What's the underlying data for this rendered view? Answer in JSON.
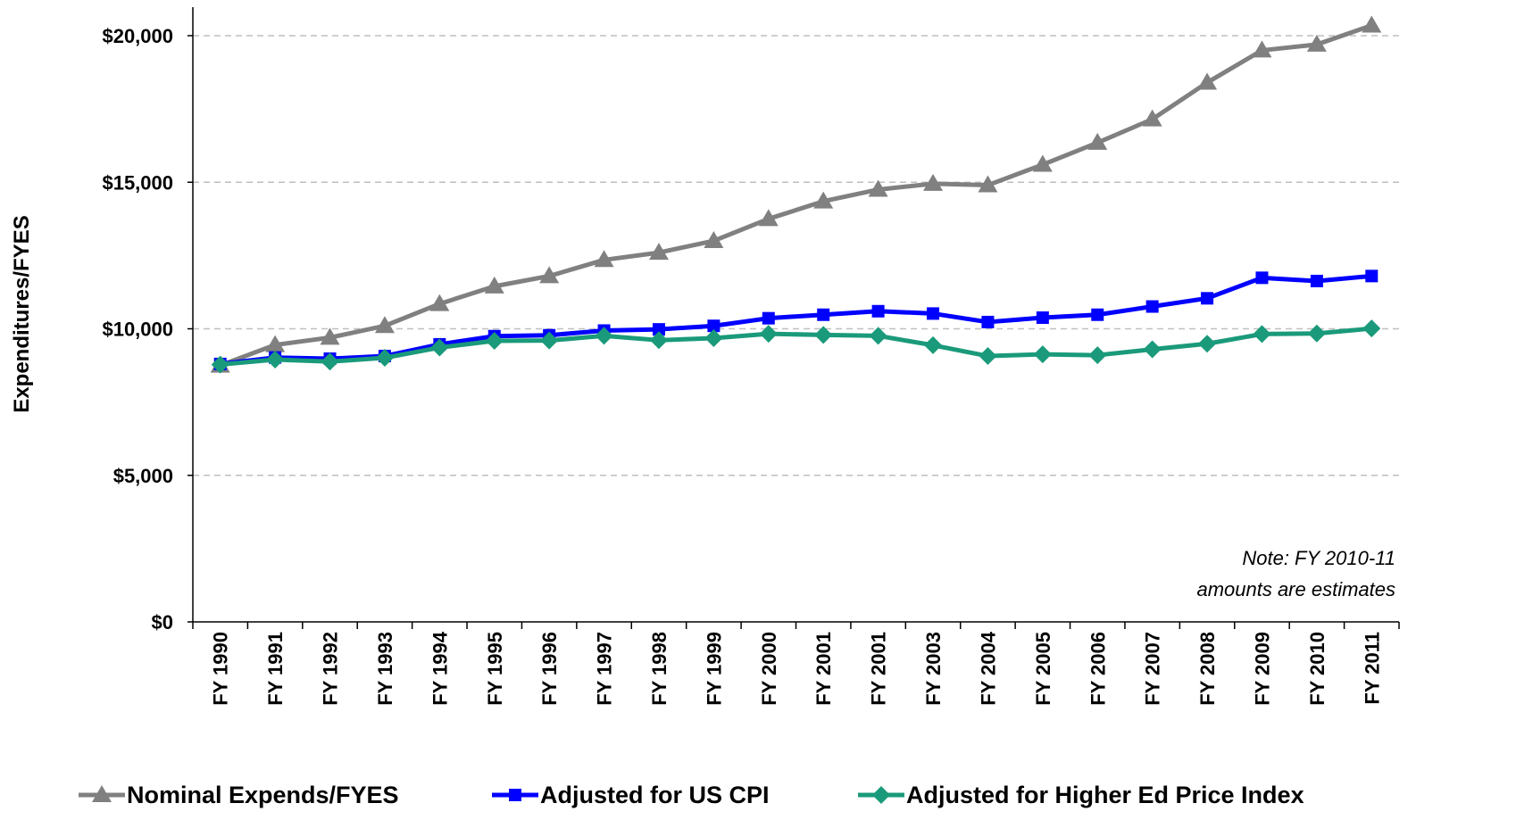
{
  "chart_data": {
    "type": "line",
    "ylabel": "Expenditures/FYES",
    "xlabel": "",
    "ylim": [
      0,
      20000
    ],
    "yticks": [
      {
        "value": 0,
        "label": "$0"
      },
      {
        "value": 5000,
        "label": "$5,000"
      },
      {
        "value": 10000,
        "label": "$10,000"
      },
      {
        "value": 15000,
        "label": "$15,000"
      },
      {
        "value": 20000,
        "label": "$20,000"
      }
    ],
    "grid": "horizontal dashed",
    "legend_position": "bottom",
    "categories": [
      "FY 1990",
      "FY 1991",
      "FY 1992",
      "FY 1993",
      "FY 1994",
      "FY 1995",
      "FY 1996",
      "FY 1997",
      "FY 1998",
      "FY 1999",
      "FY 2000",
      "FY 2001",
      "FY 2001",
      "FY 2003",
      "FY 2004",
      "FY 2005",
      "FY 2006",
      "FY 2007",
      "FY 2008",
      "FY 2009",
      "FY 2010",
      "FY 2011"
    ],
    "series": [
      {
        "name": "Nominal Expends/FYES",
        "color": "#808080",
        "marker": "triangle",
        "values": [
          8750,
          9450,
          9700,
          10100,
          10850,
          11450,
          11800,
          12350,
          12600,
          13000,
          13750,
          14350,
          14750,
          14950,
          14900,
          15600,
          16350,
          17150,
          18400,
          19500,
          19700,
          20350
        ]
      },
      {
        "name": "Adjusted for US CPI",
        "color": "#0000ff",
        "marker": "square",
        "values": [
          8800,
          9020,
          8980,
          9070,
          9470,
          9750,
          9780,
          9940,
          9980,
          10100,
          10360,
          10480,
          10600,
          10520,
          10230,
          10380,
          10480,
          10760,
          11040,
          11740,
          11630,
          11800
        ]
      },
      {
        "name": "Adjusted for Higher Ed Price Index",
        "color": "#1a9a7a",
        "marker": "diamond",
        "values": [
          8780,
          8950,
          8880,
          9010,
          9360,
          9590,
          9600,
          9760,
          9610,
          9680,
          9830,
          9790,
          9760,
          9440,
          9070,
          9130,
          9100,
          9300,
          9490,
          9820,
          9840,
          10010
        ]
      }
    ],
    "annotation": {
      "line1": "Note: FY 2010-11",
      "line2": "amounts are estimates"
    }
  }
}
